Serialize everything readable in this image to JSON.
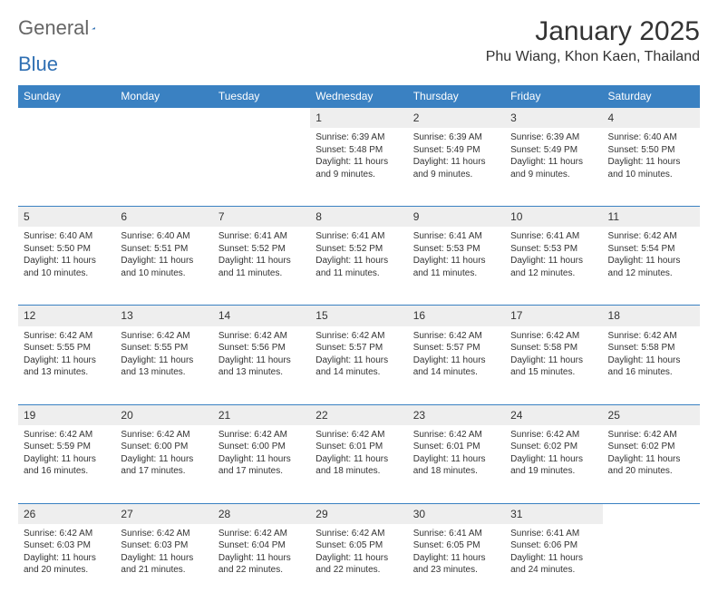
{
  "brand": {
    "word1": "General",
    "word2": "Blue"
  },
  "title": "January 2025",
  "location": "Phu Wiang, Khon Kaen, Thailand",
  "colors": {
    "header_bg": "#3a81c2",
    "header_text": "#ffffff",
    "daynum_bg": "#eeeeee",
    "rule": "#3a81c2",
    "text": "#333333",
    "logo_gray": "#666666",
    "logo_blue": "#2f6fb3"
  },
  "columns": [
    "Sunday",
    "Monday",
    "Tuesday",
    "Wednesday",
    "Thursday",
    "Friday",
    "Saturday"
  ],
  "weeks": [
    [
      null,
      null,
      null,
      {
        "n": "1",
        "sunrise": "6:39 AM",
        "sunset": "5:48 PM",
        "daylight": "11 hours and 9 minutes."
      },
      {
        "n": "2",
        "sunrise": "6:39 AM",
        "sunset": "5:49 PM",
        "daylight": "11 hours and 9 minutes."
      },
      {
        "n": "3",
        "sunrise": "6:39 AM",
        "sunset": "5:49 PM",
        "daylight": "11 hours and 9 minutes."
      },
      {
        "n": "4",
        "sunrise": "6:40 AM",
        "sunset": "5:50 PM",
        "daylight": "11 hours and 10 minutes."
      }
    ],
    [
      {
        "n": "5",
        "sunrise": "6:40 AM",
        "sunset": "5:50 PM",
        "daylight": "11 hours and 10 minutes."
      },
      {
        "n": "6",
        "sunrise": "6:40 AM",
        "sunset": "5:51 PM",
        "daylight": "11 hours and 10 minutes."
      },
      {
        "n": "7",
        "sunrise": "6:41 AM",
        "sunset": "5:52 PM",
        "daylight": "11 hours and 11 minutes."
      },
      {
        "n": "8",
        "sunrise": "6:41 AM",
        "sunset": "5:52 PM",
        "daylight": "11 hours and 11 minutes."
      },
      {
        "n": "9",
        "sunrise": "6:41 AM",
        "sunset": "5:53 PM",
        "daylight": "11 hours and 11 minutes."
      },
      {
        "n": "10",
        "sunrise": "6:41 AM",
        "sunset": "5:53 PM",
        "daylight": "11 hours and 12 minutes."
      },
      {
        "n": "11",
        "sunrise": "6:42 AM",
        "sunset": "5:54 PM",
        "daylight": "11 hours and 12 minutes."
      }
    ],
    [
      {
        "n": "12",
        "sunrise": "6:42 AM",
        "sunset": "5:55 PM",
        "daylight": "11 hours and 13 minutes."
      },
      {
        "n": "13",
        "sunrise": "6:42 AM",
        "sunset": "5:55 PM",
        "daylight": "11 hours and 13 minutes."
      },
      {
        "n": "14",
        "sunrise": "6:42 AM",
        "sunset": "5:56 PM",
        "daylight": "11 hours and 13 minutes."
      },
      {
        "n": "15",
        "sunrise": "6:42 AM",
        "sunset": "5:57 PM",
        "daylight": "11 hours and 14 minutes."
      },
      {
        "n": "16",
        "sunrise": "6:42 AM",
        "sunset": "5:57 PM",
        "daylight": "11 hours and 14 minutes."
      },
      {
        "n": "17",
        "sunrise": "6:42 AM",
        "sunset": "5:58 PM",
        "daylight": "11 hours and 15 minutes."
      },
      {
        "n": "18",
        "sunrise": "6:42 AM",
        "sunset": "5:58 PM",
        "daylight": "11 hours and 16 minutes."
      }
    ],
    [
      {
        "n": "19",
        "sunrise": "6:42 AM",
        "sunset": "5:59 PM",
        "daylight": "11 hours and 16 minutes."
      },
      {
        "n": "20",
        "sunrise": "6:42 AM",
        "sunset": "6:00 PM",
        "daylight": "11 hours and 17 minutes."
      },
      {
        "n": "21",
        "sunrise": "6:42 AM",
        "sunset": "6:00 PM",
        "daylight": "11 hours and 17 minutes."
      },
      {
        "n": "22",
        "sunrise": "6:42 AM",
        "sunset": "6:01 PM",
        "daylight": "11 hours and 18 minutes."
      },
      {
        "n": "23",
        "sunrise": "6:42 AM",
        "sunset": "6:01 PM",
        "daylight": "11 hours and 18 minutes."
      },
      {
        "n": "24",
        "sunrise": "6:42 AM",
        "sunset": "6:02 PM",
        "daylight": "11 hours and 19 minutes."
      },
      {
        "n": "25",
        "sunrise": "6:42 AM",
        "sunset": "6:02 PM",
        "daylight": "11 hours and 20 minutes."
      }
    ],
    [
      {
        "n": "26",
        "sunrise": "6:42 AM",
        "sunset": "6:03 PM",
        "daylight": "11 hours and 20 minutes."
      },
      {
        "n": "27",
        "sunrise": "6:42 AM",
        "sunset": "6:03 PM",
        "daylight": "11 hours and 21 minutes."
      },
      {
        "n": "28",
        "sunrise": "6:42 AM",
        "sunset": "6:04 PM",
        "daylight": "11 hours and 22 minutes."
      },
      {
        "n": "29",
        "sunrise": "6:42 AM",
        "sunset": "6:05 PM",
        "daylight": "11 hours and 22 minutes."
      },
      {
        "n": "30",
        "sunrise": "6:41 AM",
        "sunset": "6:05 PM",
        "daylight": "11 hours and 23 minutes."
      },
      {
        "n": "31",
        "sunrise": "6:41 AM",
        "sunset": "6:06 PM",
        "daylight": "11 hours and 24 minutes."
      },
      null
    ]
  ],
  "labels": {
    "sunrise_prefix": "Sunrise: ",
    "sunset_prefix": "Sunset: ",
    "daylight_prefix": "Daylight: "
  }
}
